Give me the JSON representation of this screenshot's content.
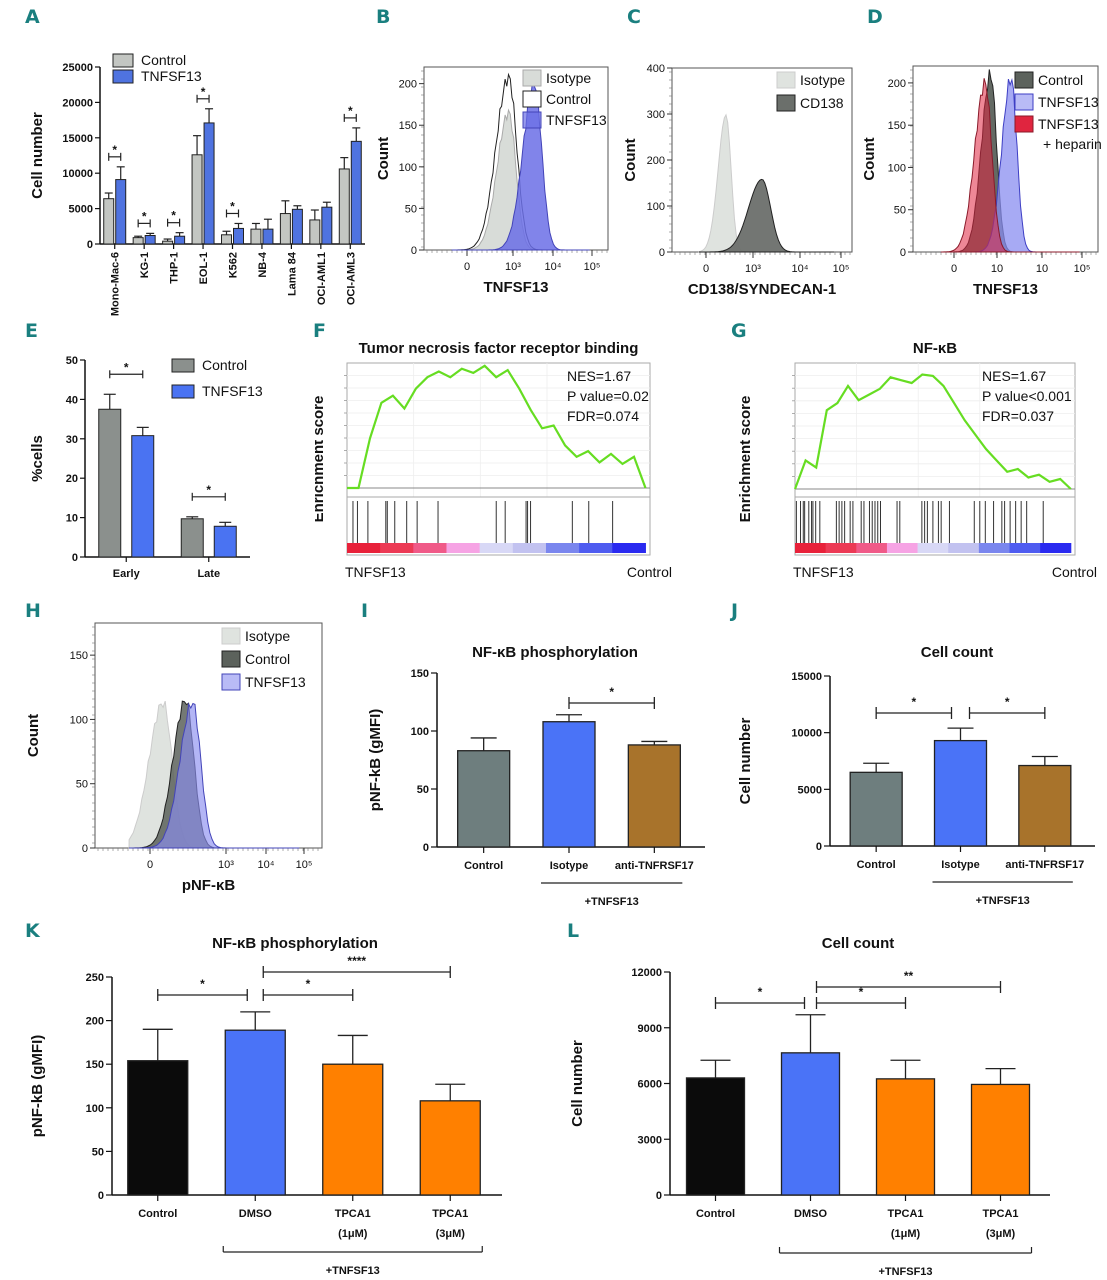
{
  "panel_labels": [
    "A",
    "B",
    "C",
    "D",
    "E",
    "F",
    "G",
    "H",
    "I",
    "J",
    "K",
    "L"
  ],
  "chart_data": [
    {
      "id": "A",
      "type": "bar",
      "ylabel": "Cell number",
      "ylim": [
        0,
        25000
      ],
      "yticks": [
        0,
        5000,
        10000,
        15000,
        20000,
        25000
      ],
      "categories": [
        "Mono-Mac-6",
        "KG-1",
        "THP-1",
        "EOL-1",
        "K562",
        "NB-4",
        "Lama 84",
        "OCI-AML1",
        "OCI-AML3"
      ],
      "series": [
        {
          "name": "Control",
          "color": "#c3c6c2",
          "values": [
            6400,
            900,
            400,
            12600,
            1300,
            2100,
            4300,
            3400,
            10600
          ],
          "errors": [
            800,
            200,
            300,
            2700,
            500,
            800,
            1800,
            1400,
            1600
          ]
        },
        {
          "name": "TNFSF13",
          "color": "#4f73e0",
          "values": [
            9100,
            1200,
            1100,
            17100,
            2200,
            2100,
            4900,
            5200,
            14500
          ],
          "errors": [
            1800,
            300,
            500,
            2000,
            700,
            1400,
            500,
            700,
            1900
          ]
        }
      ],
      "significance": [
        {
          "category": "Mono-Mac-6",
          "label": "*"
        },
        {
          "category": "KG-1",
          "label": "*"
        },
        {
          "category": "THP-1",
          "label": "*"
        },
        {
          "category": "EOL-1",
          "label": "*"
        },
        {
          "category": "K562",
          "label": "*"
        },
        {
          "category": "OCI-AML3",
          "label": "*"
        }
      ],
      "legend": "top-left"
    },
    {
      "id": "B",
      "type": "histogram",
      "xlabel": "TNFSF13",
      "ylabel": "Count",
      "ylim": [
        0,
        220
      ],
      "yticks": [
        0,
        50,
        100,
        150,
        200
      ],
      "xticks": [
        "0",
        "10³",
        "10⁴",
        "10⁵"
      ],
      "series": [
        {
          "name": "Isotype",
          "color": "#d8dcd8",
          "peak_count": 165,
          "peak_pos": 0.46
        },
        {
          "name": "Control",
          "color": "#ffffff",
          "peak_count": 207,
          "peak_pos": 0.46
        },
        {
          "name": "TNFSF13",
          "color": "#6b6fe6",
          "peak_count": 200,
          "peak_pos": 0.6
        }
      ],
      "legend": "top-right"
    },
    {
      "id": "C",
      "type": "histogram",
      "xlabel": "CD138/SYNDECAN-1",
      "ylabel": "Count",
      "ylim": [
        0,
        400
      ],
      "yticks": [
        0,
        100,
        200,
        300,
        400
      ],
      "xticks": [
        "0",
        "10³",
        "10⁴",
        "10⁵"
      ],
      "series": [
        {
          "name": "Isotype",
          "color": "#dfe3df",
          "peak_count": 298,
          "peak_pos": 0.3
        },
        {
          "name": "CD138",
          "color": "#6b6f6b",
          "peak_count": 158,
          "peak_pos": 0.5
        }
      ],
      "legend": "top-right"
    },
    {
      "id": "D",
      "type": "histogram",
      "xlabel": "TNFSF13",
      "ylabel": "Count",
      "ylim": [
        0,
        220
      ],
      "yticks": [
        0,
        50,
        100,
        150,
        200
      ],
      "xticks": [
        "0",
        "10",
        "10",
        "10⁵"
      ],
      "series": [
        {
          "name": "Control",
          "color": "#5c625c",
          "peak_count": 210,
          "peak_pos": 0.42
        },
        {
          "name": "TNFSF13",
          "color": "#8a8ef0",
          "peak_count": 205,
          "peak_pos": 0.53
        },
        {
          "name": "TNFSF13 + heparin",
          "color": "#e0253f",
          "peak_count": 200,
          "peak_pos": 0.39
        }
      ],
      "legend": "top-right"
    },
    {
      "id": "E",
      "type": "bar",
      "ylabel": "%cells",
      "ylim": [
        0,
        50
      ],
      "yticks": [
        0,
        10,
        20,
        30,
        40,
        50
      ],
      "categories": [
        "Early",
        "Late"
      ],
      "series": [
        {
          "name": "Control",
          "color": "#8b908d",
          "values": [
            37.5,
            9.7
          ],
          "errors": [
            3.8,
            0.5
          ]
        },
        {
          "name": "TNFSF13",
          "color": "#4a73f2",
          "values": [
            30.8,
            7.8
          ],
          "errors": [
            2.1,
            1.0
          ]
        }
      ],
      "significance": [
        {
          "category": "Early",
          "label": "*"
        },
        {
          "category": "Late",
          "label": "*"
        }
      ],
      "legend": "top-right"
    },
    {
      "id": "F",
      "type": "line",
      "title": "Tumor necrosis factor receptor binding",
      "ylabel": "Enrichment score",
      "left_label": "TNFSF13",
      "right_label": "Control",
      "stats": [
        "NES=1.67",
        "P value=0.02",
        "FDR=0.074"
      ],
      "es_curve": [
        0,
        0.0,
        0.35,
        0.6,
        0.65,
        0.56,
        0.7,
        0.78,
        0.82,
        0.78,
        0.84,
        0.81,
        0.86,
        0.78,
        0.83,
        0.7,
        0.55,
        0.42,
        0.44,
        0.3,
        0.22,
        0.26,
        0.18,
        0.24,
        0.17,
        0.22,
        0.0
      ],
      "hit_positions": [
        0.02,
        0.035,
        0.07,
        0.13,
        0.135,
        0.16,
        0.2,
        0.235,
        0.305,
        0.5,
        0.53,
        0.6,
        0.605,
        0.615,
        0.755,
        0.81,
        0.89
      ],
      "line_color": "#66dd22"
    },
    {
      "id": "G",
      "type": "line",
      "title": "NF-κB",
      "ylabel": "Enrichment score",
      "left_label": "TNFSF13",
      "right_label": "Control",
      "stats": [
        "NES=1.67",
        "P value<0.001",
        "FDR=0.037"
      ],
      "es_curve": [
        0,
        0.2,
        0.15,
        0.55,
        0.6,
        0.72,
        0.62,
        0.66,
        0.7,
        0.78,
        0.76,
        0.74,
        0.8,
        0.79,
        0.72,
        0.6,
        0.48,
        0.38,
        0.28,
        0.2,
        0.12,
        0.14,
        0.08,
        0.1,
        0.05,
        0.07,
        0.0
      ],
      "hit_positions": [
        0.005,
        0.02,
        0.03,
        0.035,
        0.05,
        0.06,
        0.065,
        0.075,
        0.09,
        0.15,
        0.16,
        0.17,
        0.18,
        0.2,
        0.21,
        0.24,
        0.25,
        0.27,
        0.28,
        0.29,
        0.3,
        0.31,
        0.37,
        0.38,
        0.46,
        0.47,
        0.48,
        0.5,
        0.52,
        0.53,
        0.56,
        0.65,
        0.67,
        0.69,
        0.72,
        0.75,
        0.76,
        0.78,
        0.8,
        0.82,
        0.84,
        0.9
      ],
      "line_color": "#66dd22"
    },
    {
      "id": "H",
      "type": "histogram",
      "xlabel": "pNF-κB",
      "ylabel": "Count",
      "ylim": [
        0,
        175
      ],
      "yticks": [
        0,
        50,
        100,
        150
      ],
      "xticks": [
        "0",
        "10³",
        "10⁴",
        "10⁵"
      ],
      "series": [
        {
          "name": "Isotype",
          "color": "#dfe3df",
          "peak_count": 113,
          "peak_pos": 0.3
        },
        {
          "name": "Control",
          "color": "#5c625c",
          "peak_count": 115,
          "peak_pos": 0.4
        },
        {
          "name": "TNFSF13",
          "color": "#8a8ef0",
          "peak_count": 113,
          "peak_pos": 0.43
        }
      ],
      "legend": "top-right"
    },
    {
      "id": "I",
      "type": "bar",
      "title": "NF-κB phosphorylation",
      "ylabel": "pNF-kB (gMFI)",
      "ylim": [
        0,
        150
      ],
      "yticks": [
        0,
        50,
        100,
        150
      ],
      "categories": [
        "Control",
        "Isotype",
        "anti-TNFRSF17"
      ],
      "values": [
        83,
        108,
        88
      ],
      "errors": [
        11,
        6,
        3
      ],
      "colors": [
        "#6e7e7e",
        "#4a73f7",
        "#a8732b"
      ],
      "significance": [
        {
          "from": 1,
          "to": 2,
          "label": "*"
        }
      ],
      "group_label": {
        "text": "+TNFSF13",
        "from": 1,
        "to": 2
      }
    },
    {
      "id": "J",
      "type": "bar",
      "title": "Cell count",
      "ylabel": "Cell number",
      "ylim": [
        0,
        15000
      ],
      "yticks": [
        0,
        5000,
        10000,
        15000
      ],
      "categories": [
        "Control",
        "Isotype",
        "anti-TNFRSF17"
      ],
      "values": [
        6500,
        9300,
        7100
      ],
      "errors": [
        800,
        1100,
        800
      ],
      "colors": [
        "#6e7e7e",
        "#4a73f7",
        "#a8732b"
      ],
      "significance": [
        {
          "from": 0,
          "to": 1,
          "label": "*"
        },
        {
          "from": 1,
          "to": 2,
          "label": "*"
        }
      ],
      "group_label": {
        "text": "+TNFSF13",
        "from": 1,
        "to": 2
      }
    },
    {
      "id": "K",
      "type": "bar",
      "title": "NF-κB phosphorylation",
      "ylabel": "pNF-kB (gMFI)",
      "ylim": [
        0,
        250
      ],
      "yticks": [
        0,
        50,
        100,
        150,
        200,
        250
      ],
      "categories": [
        "Control",
        "DMSO",
        "TPCA1\n(1μM)",
        "TPCA1\n(3μM)"
      ],
      "values": [
        154,
        189,
        150,
        108
      ],
      "errors": [
        36,
        21,
        33,
        19
      ],
      "colors": [
        "#0b0b0b",
        "#4a73f7",
        "#ff8000",
        "#ff8000"
      ],
      "significance": [
        {
          "from": 0,
          "to": 1,
          "label": "*"
        },
        {
          "from": 1,
          "to": 2,
          "label": "*"
        },
        {
          "from": 1,
          "to": 3,
          "label": "****"
        }
      ],
      "group_label": {
        "text": "+TNFSF13",
        "from": 1,
        "to": 3
      }
    },
    {
      "id": "L",
      "type": "bar",
      "title": "Cell count",
      "ylabel": "Cell number",
      "ylim": [
        0,
        12000
      ],
      "yticks": [
        0,
        3000,
        6000,
        9000,
        12000
      ],
      "categories": [
        "Control",
        "DMSO",
        "TPCA1\n(1μM)",
        "TPCA1\n(3μM)"
      ],
      "values": [
        6300,
        7650,
        6250,
        5950
      ],
      "errors": [
        950,
        2050,
        1000,
        850
      ],
      "colors": [
        "#0b0b0b",
        "#4a73f7",
        "#ff8000",
        "#ff8000"
      ],
      "significance": [
        {
          "from": 0,
          "to": 1,
          "label": "*"
        },
        {
          "from": 1,
          "to": 2,
          "label": "*"
        },
        {
          "from": 1,
          "to": 3,
          "label": "**"
        }
      ],
      "group_label": {
        "text": "+TNFSF13",
        "from": 1,
        "to": 3
      }
    }
  ]
}
